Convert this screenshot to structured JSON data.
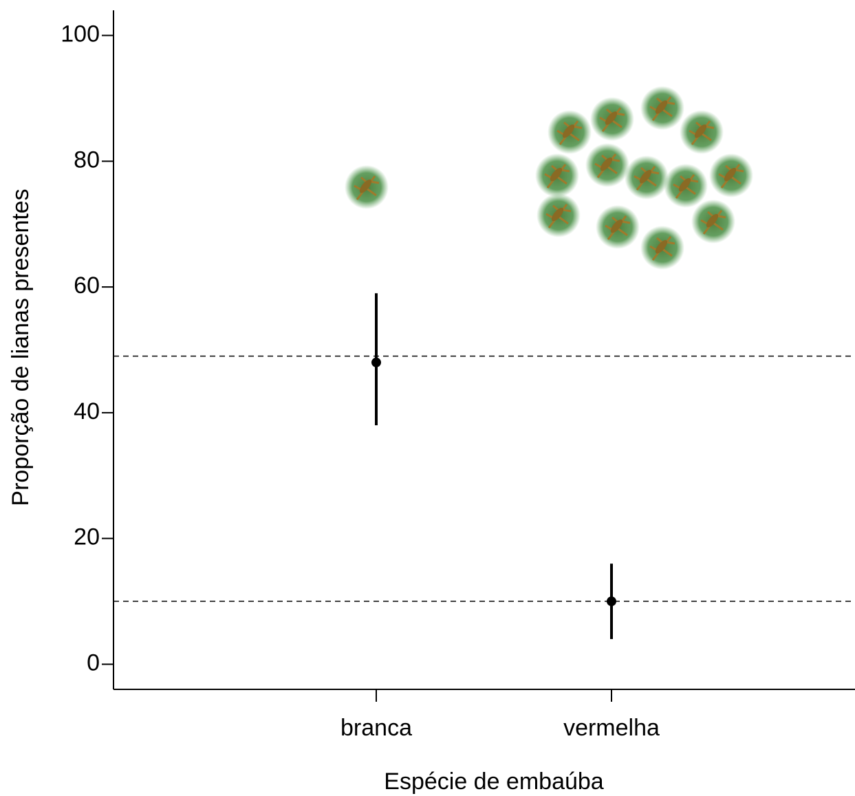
{
  "chart_data": {
    "type": "pointrange",
    "xlabel": "Espécie de embaúba",
    "ylabel": "Proporção de lianas presentes",
    "categories": [
      "branca",
      "vermelha"
    ],
    "values": [
      48,
      10
    ],
    "lower": [
      38,
      4
    ],
    "upper": [
      59,
      16
    ],
    "color": "#000000",
    "hlines": [
      49,
      10
    ],
    "ylim": [
      -4,
      104
    ],
    "yticks": [
      0,
      20,
      40,
      60,
      80,
      100
    ]
  }
}
